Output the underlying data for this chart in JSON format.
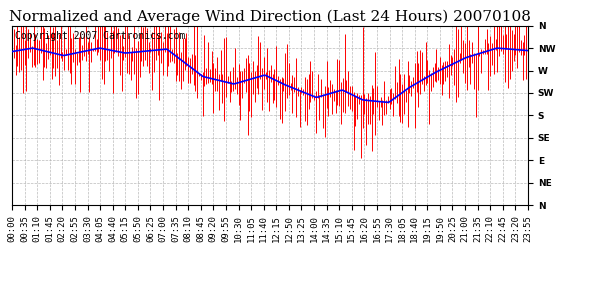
{
  "title": "Normalized and Average Wind Direction (Last 24 Hours) 20070108",
  "copyright_text": "Copyright 2007 Cartronics.com",
  "background_color": "#ffffff",
  "plot_bg_color": "#ffffff",
  "grid_color": "#aaaaaa",
  "y_labels": [
    "N",
    "NW",
    "W",
    "SW",
    "S",
    "SE",
    "E",
    "NE",
    "N"
  ],
  "y_ticks": [
    360,
    315,
    270,
    225,
    180,
    135,
    90,
    45,
    0
  ],
  "ylim": [
    0,
    360
  ],
  "x_tick_labels": [
    "00:00",
    "00:35",
    "01:10",
    "01:45",
    "02:20",
    "02:55",
    "03:30",
    "04:05",
    "04:40",
    "05:15",
    "05:50",
    "06:25",
    "07:00",
    "07:35",
    "08:10",
    "08:45",
    "09:20",
    "09:55",
    "10:30",
    "11:05",
    "11:40",
    "12:15",
    "12:50",
    "13:25",
    "14:00",
    "14:35",
    "15:10",
    "15:45",
    "16:20",
    "16:55",
    "17:30",
    "18:05",
    "18:40",
    "19:15",
    "19:50",
    "20:25",
    "21:00",
    "21:35",
    "22:10",
    "22:45",
    "23:20",
    "23:55"
  ],
  "bar_color": "#ff0000",
  "line_color": "#0000ff",
  "title_fontsize": 11,
  "copyright_fontsize": 7,
  "tick_fontsize": 6.5
}
